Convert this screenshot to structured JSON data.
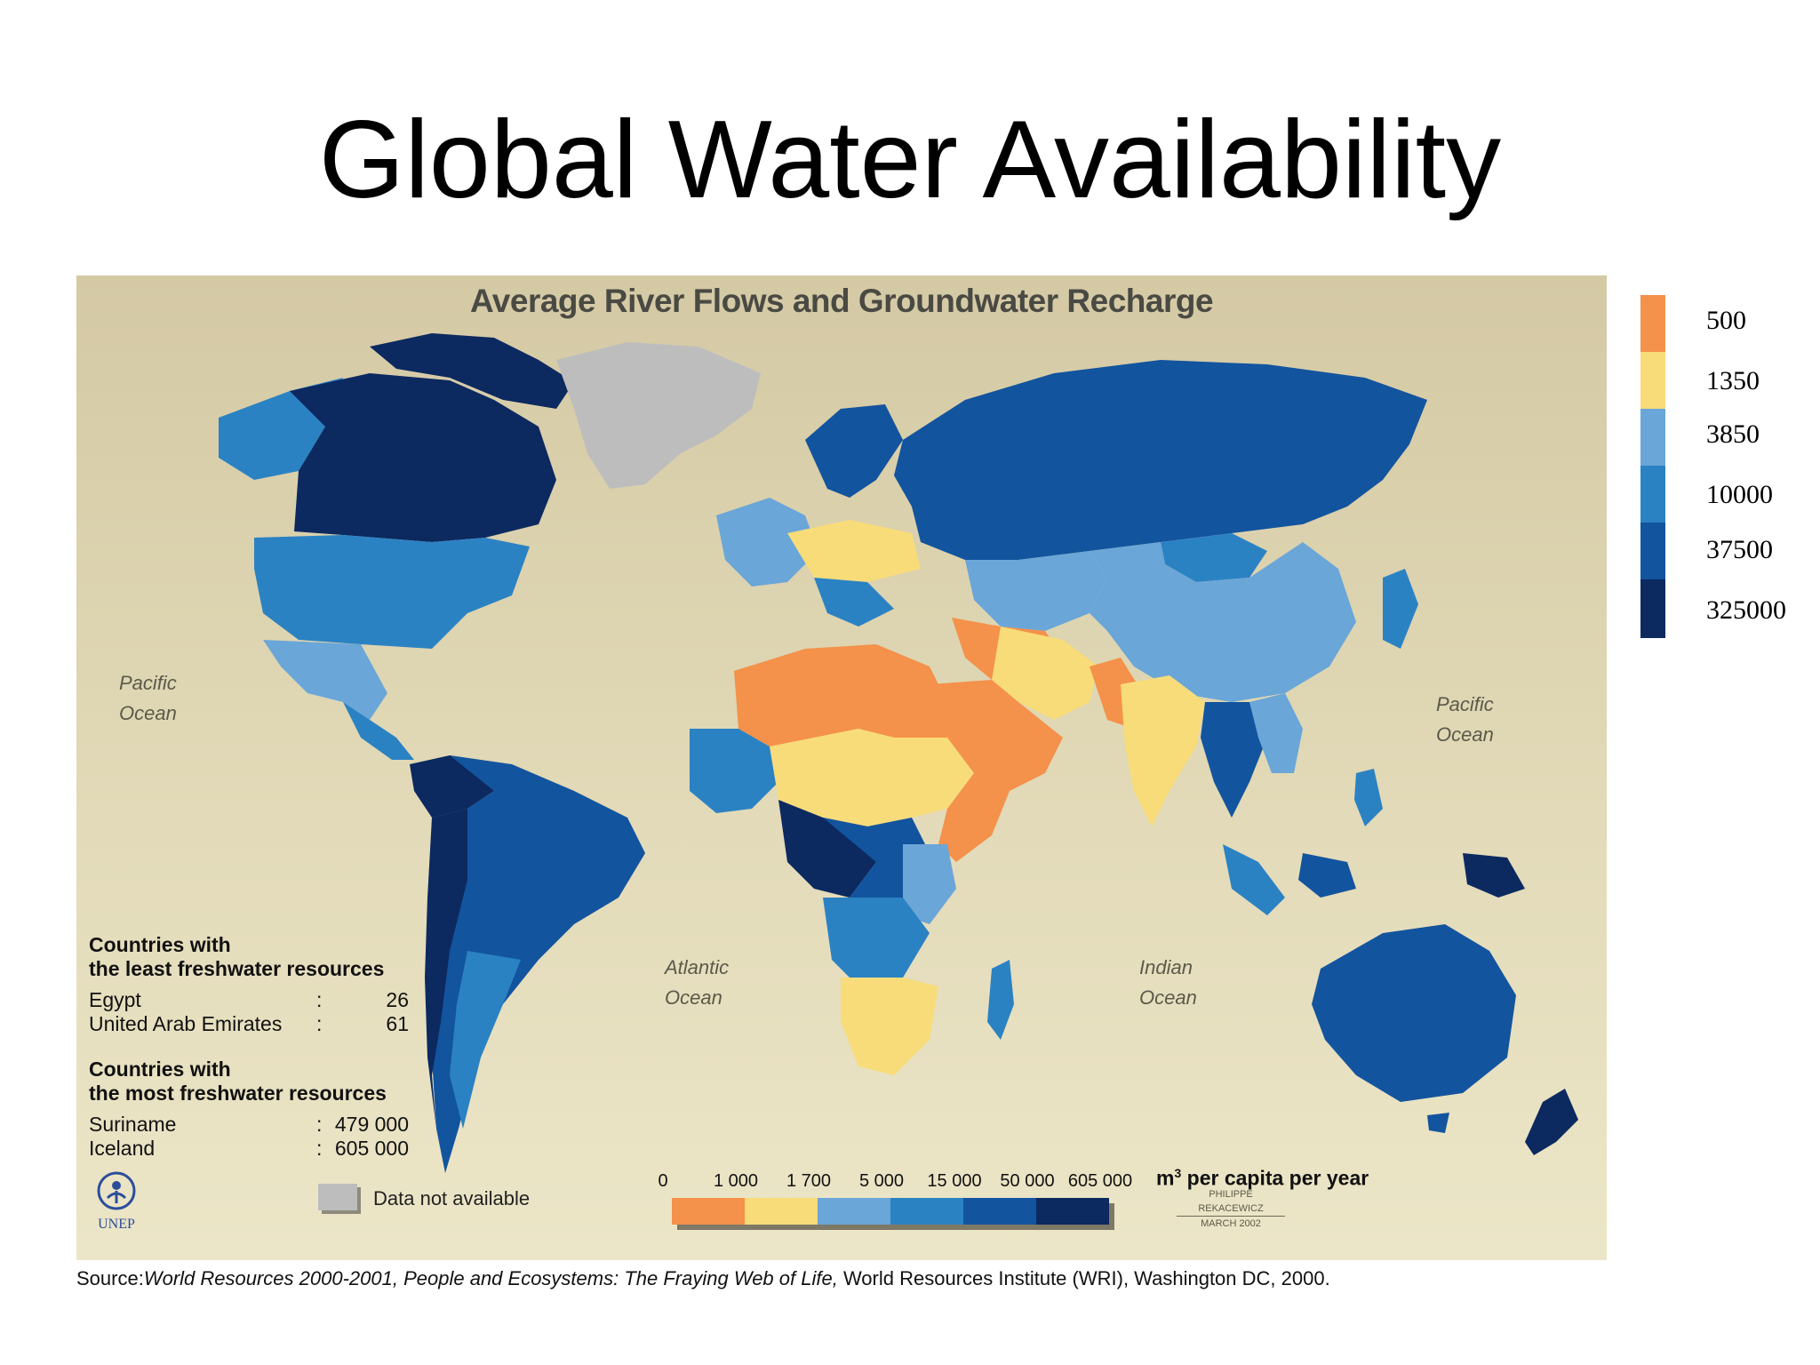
{
  "slide": {
    "title": "Global Water Availability"
  },
  "map": {
    "title": "Average River Flows and Groundwater Recharge",
    "oceans": [
      {
        "line1": "Pacific",
        "line2": "Ocean"
      },
      {
        "line1": "Atlantic",
        "line2": "Ocean"
      },
      {
        "line1": "Indian",
        "line2": "Ocean"
      },
      {
        "line1": "Pacific",
        "line2": "Ocean"
      }
    ],
    "least": {
      "heading1": "Countries with",
      "heading2": "the least freshwater resources",
      "rows": [
        {
          "name": "Egypt",
          "colon": ":",
          "value": "26"
        },
        {
          "name": "United Arab Emirates",
          "colon": ":",
          "value": "61"
        }
      ]
    },
    "most": {
      "heading1": "Countries with",
      "heading2": "the most freshwater resources",
      "rows": [
        {
          "name": "Suriname",
          "colon": ":",
          "value": "479 000"
        },
        {
          "name": "Iceland",
          "colon": ":",
          "value": "605 000"
        }
      ]
    },
    "scale": {
      "ticks": [
        "0",
        "1 000",
        "1 700",
        "5 000",
        "15 000",
        "50 000",
        "605 000"
      ],
      "unit_main": "m",
      "unit_sup": "3",
      "unit_rest": " per capita per year",
      "colors": [
        "#f4914a",
        "#f8dc7a",
        "#6aa6d8",
        "#2b82c3",
        "#13549e",
        "#0c2960"
      ]
    },
    "no_data": {
      "label": "Data not available",
      "color": "#bdbdbd"
    },
    "logo": {
      "label": "UNEP"
    },
    "credit": {
      "line1": "PHILIPPE REKACEWICZ",
      "line2": "MARCH 2002"
    }
  },
  "legend": {
    "labels": [
      "500",
      "1350",
      "3850",
      "10000",
      "37500",
      "325000"
    ],
    "colors": [
      "#f4914a",
      "#f8dc7a",
      "#6aa6d8",
      "#2b82c3",
      "#13549e",
      "#0c2960"
    ]
  },
  "source": {
    "prefix": "Source:",
    "italic": "World Resources 2000-2001, People and Ecosystems: The Fraying Web of Life,",
    "rest": " World Resources Institute (WRI), Washington DC, 2000."
  }
}
